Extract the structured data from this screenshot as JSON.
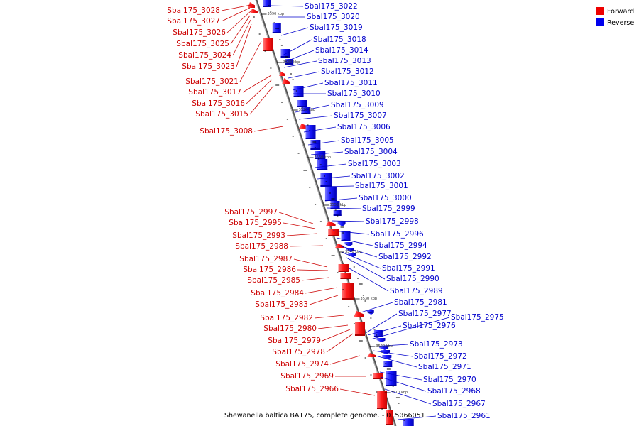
{
  "caption": "Shewanella baltica BA175, complete genome. - 0..5066051",
  "legend": [
    {
      "label": "Forward",
      "color": "#ee0000"
    },
    {
      "label": "Reverse",
      "color": "#0000ee"
    }
  ],
  "ticks": [
    "3590 kbp",
    "3580 kbp",
    "3570 kbp",
    "3560 kbp",
    "3550 kbp",
    "3540 kbp",
    "3530 kbp",
    "3520 kbp",
    "3510 kbp"
  ],
  "forward_genes": [
    "Sbal175_3028",
    "Sbal175_3027",
    "Sbal175_3026",
    "Sbal175_3025",
    "Sbal175_3024",
    "Sbal175_3023",
    "Sbal175_3021",
    "Sbal175_3017",
    "Sbal175_3016",
    "Sbal175_3015",
    "Sbal175_3008",
    "Sbal175_2997",
    "Sbal175_2995",
    "Sbal175_2993",
    "Sbal175_2988",
    "Sbal175_2987",
    "Sbal175_2986",
    "Sbal175_2985",
    "Sbal175_2984",
    "Sbal175_2983",
    "Sbal175_2982",
    "Sbal175_2980",
    "Sbal175_2979",
    "Sbal175_2978",
    "Sbal175_2974",
    "Sbal175_2969",
    "Sbal175_2966"
  ],
  "reverse_genes": [
    "Sbal175_3022",
    "Sbal175_3020",
    "Sbal175_3019",
    "Sbal175_3018",
    "Sbal175_3014",
    "Sbal175_3013",
    "Sbal175_3012",
    "Sbal175_3011",
    "Sbal175_3010",
    "Sbal175_3009",
    "Sbal175_3007",
    "Sbal175_3006",
    "Sbal175_3005",
    "Sbal175_3004",
    "Sbal175_3003",
    "Sbal175_3002",
    "Sbal175_3001",
    "Sbal175_3000",
    "Sbal175_2999",
    "Sbal175_2998",
    "Sbal175_2996",
    "Sbal175_2994",
    "Sbal175_2992",
    "Sbal175_2991",
    "Sbal175_2990",
    "Sbal175_2989",
    "Sbal175_2981",
    "Sbal175_2977",
    "Sbal175_2976",
    "Sbal175_2975",
    "Sbal175_2973",
    "Sbal175_2972",
    "Sbal175_2971",
    "Sbal175_2970",
    "Sbal175_2968",
    "Sbal175_2967",
    "Sbal175_2961"
  ]
}
